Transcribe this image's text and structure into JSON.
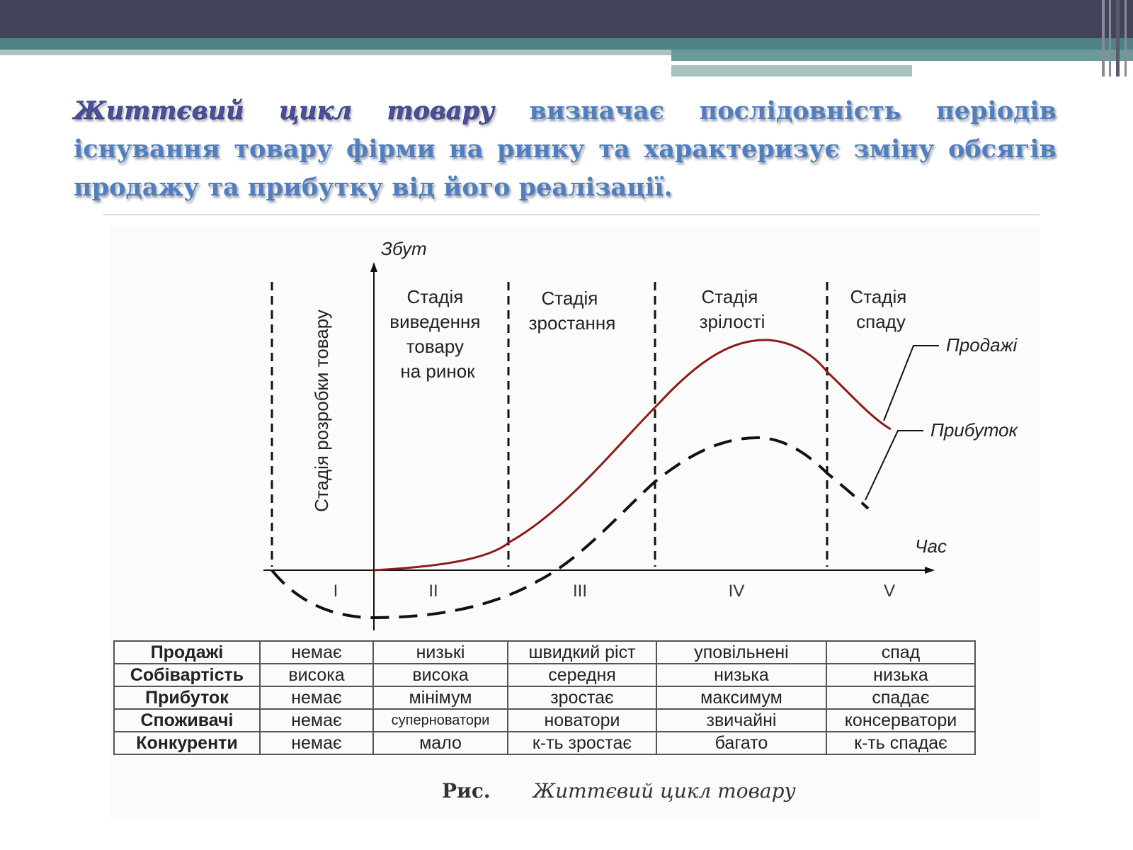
{
  "title": {
    "term": "Життєвий цикл товару",
    "text": " визначає послідовність періодів існування товару фірми на ринку та характеризує зміну обсягів продажу та прибутку від його реалізації."
  },
  "diagram": {
    "y_axis_label": "Збут",
    "x_axis_label": "Час",
    "development_stage": "Стадія розробки товару",
    "stages": [
      {
        "roman": "I",
        "lines": []
      },
      {
        "roman": "II",
        "lines": [
          "Стадія",
          "виведення",
          "товару",
          "на ринок"
        ]
      },
      {
        "roman": "III",
        "lines": [
          "Стадія",
          "зростання"
        ]
      },
      {
        "roman": "IV",
        "lines": [
          "Стадія",
          "зрілості"
        ]
      },
      {
        "roman": "V",
        "lines": [
          "Стадія",
          "спаду"
        ]
      }
    ],
    "curves": [
      {
        "name": "Продажі",
        "style": "solid",
        "color": "#8b1a1a"
      },
      {
        "name": "Прибуток",
        "style": "dashed",
        "color": "#111111"
      }
    ]
  },
  "table": {
    "rows": [
      {
        "label": "Продажі",
        "cells": [
          "немає",
          "низькі",
          "швидкий ріст",
          "уповільнені",
          "спад"
        ]
      },
      {
        "label": "Собівартість",
        "cells": [
          "висока",
          "висока",
          "середня",
          "низька",
          "низька"
        ]
      },
      {
        "label": "Прибуток",
        "cells": [
          "немає",
          "мінімум",
          "зростає",
          "максимум",
          "спадає"
        ]
      },
      {
        "label": "Споживачі",
        "cells": [
          "немає",
          "суперноватори",
          "новатори",
          "звичайні",
          "консерватори"
        ]
      },
      {
        "label": "Конкуренти",
        "cells": [
          "немає",
          "мало",
          "к-ть зростає",
          "багато",
          "к-ть спадає"
        ]
      }
    ]
  },
  "caption": {
    "label": "Рис.",
    "text": "Життєвий цикл товару"
  }
}
